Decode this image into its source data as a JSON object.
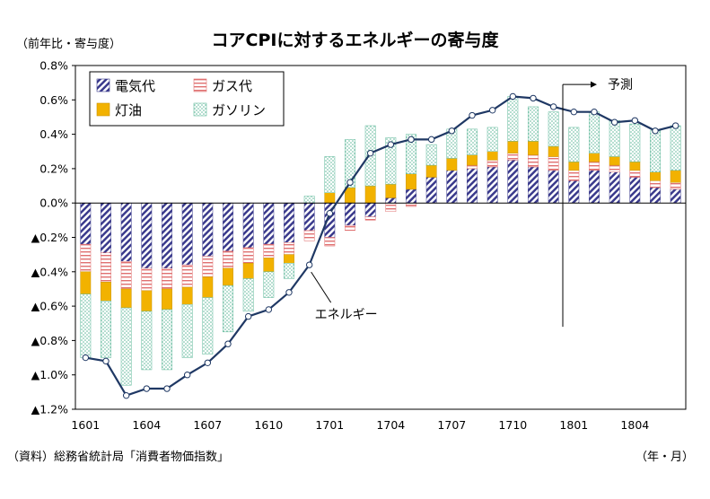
{
  "header": {
    "unit_label": "（前年比・寄与度）",
    "title": "コアCPIに対するエネルギーの寄与度"
  },
  "footer": {
    "source": "（資料）総務省統計局「消費者物価指数」",
    "x_unit": "（年・月）"
  },
  "annotations": {
    "forecast": "予測",
    "energy": "エネルギー"
  },
  "colors": {
    "electricity": "#3a3a8c",
    "gas": "#e07070",
    "kerosene": "#f2b200",
    "gasoline": "#5fb89a",
    "line": "#1f3864"
  },
  "chart_data": {
    "type": "bar",
    "stacked": true,
    "title": "コアCPIに対するエネルギーの寄与度",
    "ylabel": "（前年比・寄与度）",
    "xlabel": "（年・月）",
    "ylim": [
      -1.2,
      0.8
    ],
    "yticks": [
      0.8,
      0.6,
      0.4,
      0.2,
      0.0,
      -0.2,
      -0.4,
      -0.6,
      -0.8,
      -1.0,
      -1.2
    ],
    "ytick_labels": [
      "0.8%",
      "0.6%",
      "0.4%",
      "0.2%",
      "0.0%",
      "▲0.2%",
      "▲0.4%",
      "▲0.6%",
      "▲0.8%",
      "▲1.0%",
      "▲1.2%"
    ],
    "categories": [
      "1601",
      "1602",
      "1603",
      "1604",
      "1605",
      "1606",
      "1607",
      "1608",
      "1609",
      "1610",
      "1611",
      "1612",
      "1701",
      "1702",
      "1703",
      "1704",
      "1705",
      "1706",
      "1707",
      "1708",
      "1709",
      "1710",
      "1711",
      "1712",
      "1801",
      "1802",
      "1803",
      "1804",
      "1805",
      "1806"
    ],
    "xtick_labels": [
      "1601",
      "1604",
      "1607",
      "1610",
      "1701",
      "1704",
      "1707",
      "1710",
      "1801",
      "1804"
    ],
    "grid": false,
    "legend_position": "top-left",
    "forecast_start": "1801",
    "series": [
      {
        "name": "電気代",
        "values": [
          -0.24,
          -0.29,
          -0.34,
          -0.38,
          -0.38,
          -0.36,
          -0.31,
          -0.28,
          -0.26,
          -0.24,
          -0.23,
          -0.16,
          -0.2,
          -0.13,
          -0.08,
          0.03,
          0.08,
          0.15,
          0.19,
          0.2,
          0.21,
          0.25,
          0.21,
          0.19,
          0.13,
          0.19,
          0.18,
          0.15,
          0.09,
          0.08
        ]
      },
      {
        "name": "ガス代",
        "values": [
          -0.16,
          -0.17,
          -0.16,
          -0.13,
          -0.12,
          -0.13,
          -0.12,
          -0.1,
          -0.09,
          -0.08,
          -0.07,
          -0.06,
          -0.05,
          -0.03,
          -0.02,
          -0.05,
          -0.02,
          0.0,
          0.0,
          0.02,
          0.04,
          0.04,
          0.07,
          0.08,
          0.06,
          0.05,
          0.04,
          0.04,
          0.04,
          0.04
        ]
      },
      {
        "name": "灯油",
        "values": [
          -0.13,
          -0.11,
          -0.11,
          -0.12,
          -0.12,
          -0.1,
          -0.12,
          -0.1,
          -0.09,
          -0.08,
          -0.05,
          0.0,
          0.06,
          0.09,
          0.1,
          0.08,
          0.09,
          0.07,
          0.07,
          0.06,
          0.05,
          0.07,
          0.08,
          0.06,
          0.05,
          0.05,
          0.05,
          0.05,
          0.05,
          0.07
        ]
      },
      {
        "name": "ガソリン",
        "values": [
          -0.37,
          -0.33,
          -0.45,
          -0.34,
          -0.35,
          -0.31,
          -0.33,
          -0.27,
          -0.19,
          -0.15,
          -0.09,
          0.04,
          0.21,
          0.28,
          0.35,
          0.27,
          0.23,
          0.12,
          0.17,
          0.15,
          0.14,
          0.26,
          0.2,
          0.2,
          0.2,
          0.24,
          0.21,
          0.22,
          0.24,
          0.26
        ]
      }
    ],
    "line_series": {
      "name": "エネルギー",
      "values": [
        -0.9,
        -0.92,
        -1.12,
        -1.08,
        -1.08,
        -1.0,
        -0.93,
        -0.82,
        -0.66,
        -0.62,
        -0.52,
        -0.36,
        -0.06,
        0.12,
        0.29,
        0.34,
        0.37,
        0.37,
        0.42,
        0.51,
        0.54,
        0.62,
        0.61,
        0.56,
        0.53,
        0.53,
        0.47,
        0.48,
        0.42,
        0.45
      ]
    }
  }
}
